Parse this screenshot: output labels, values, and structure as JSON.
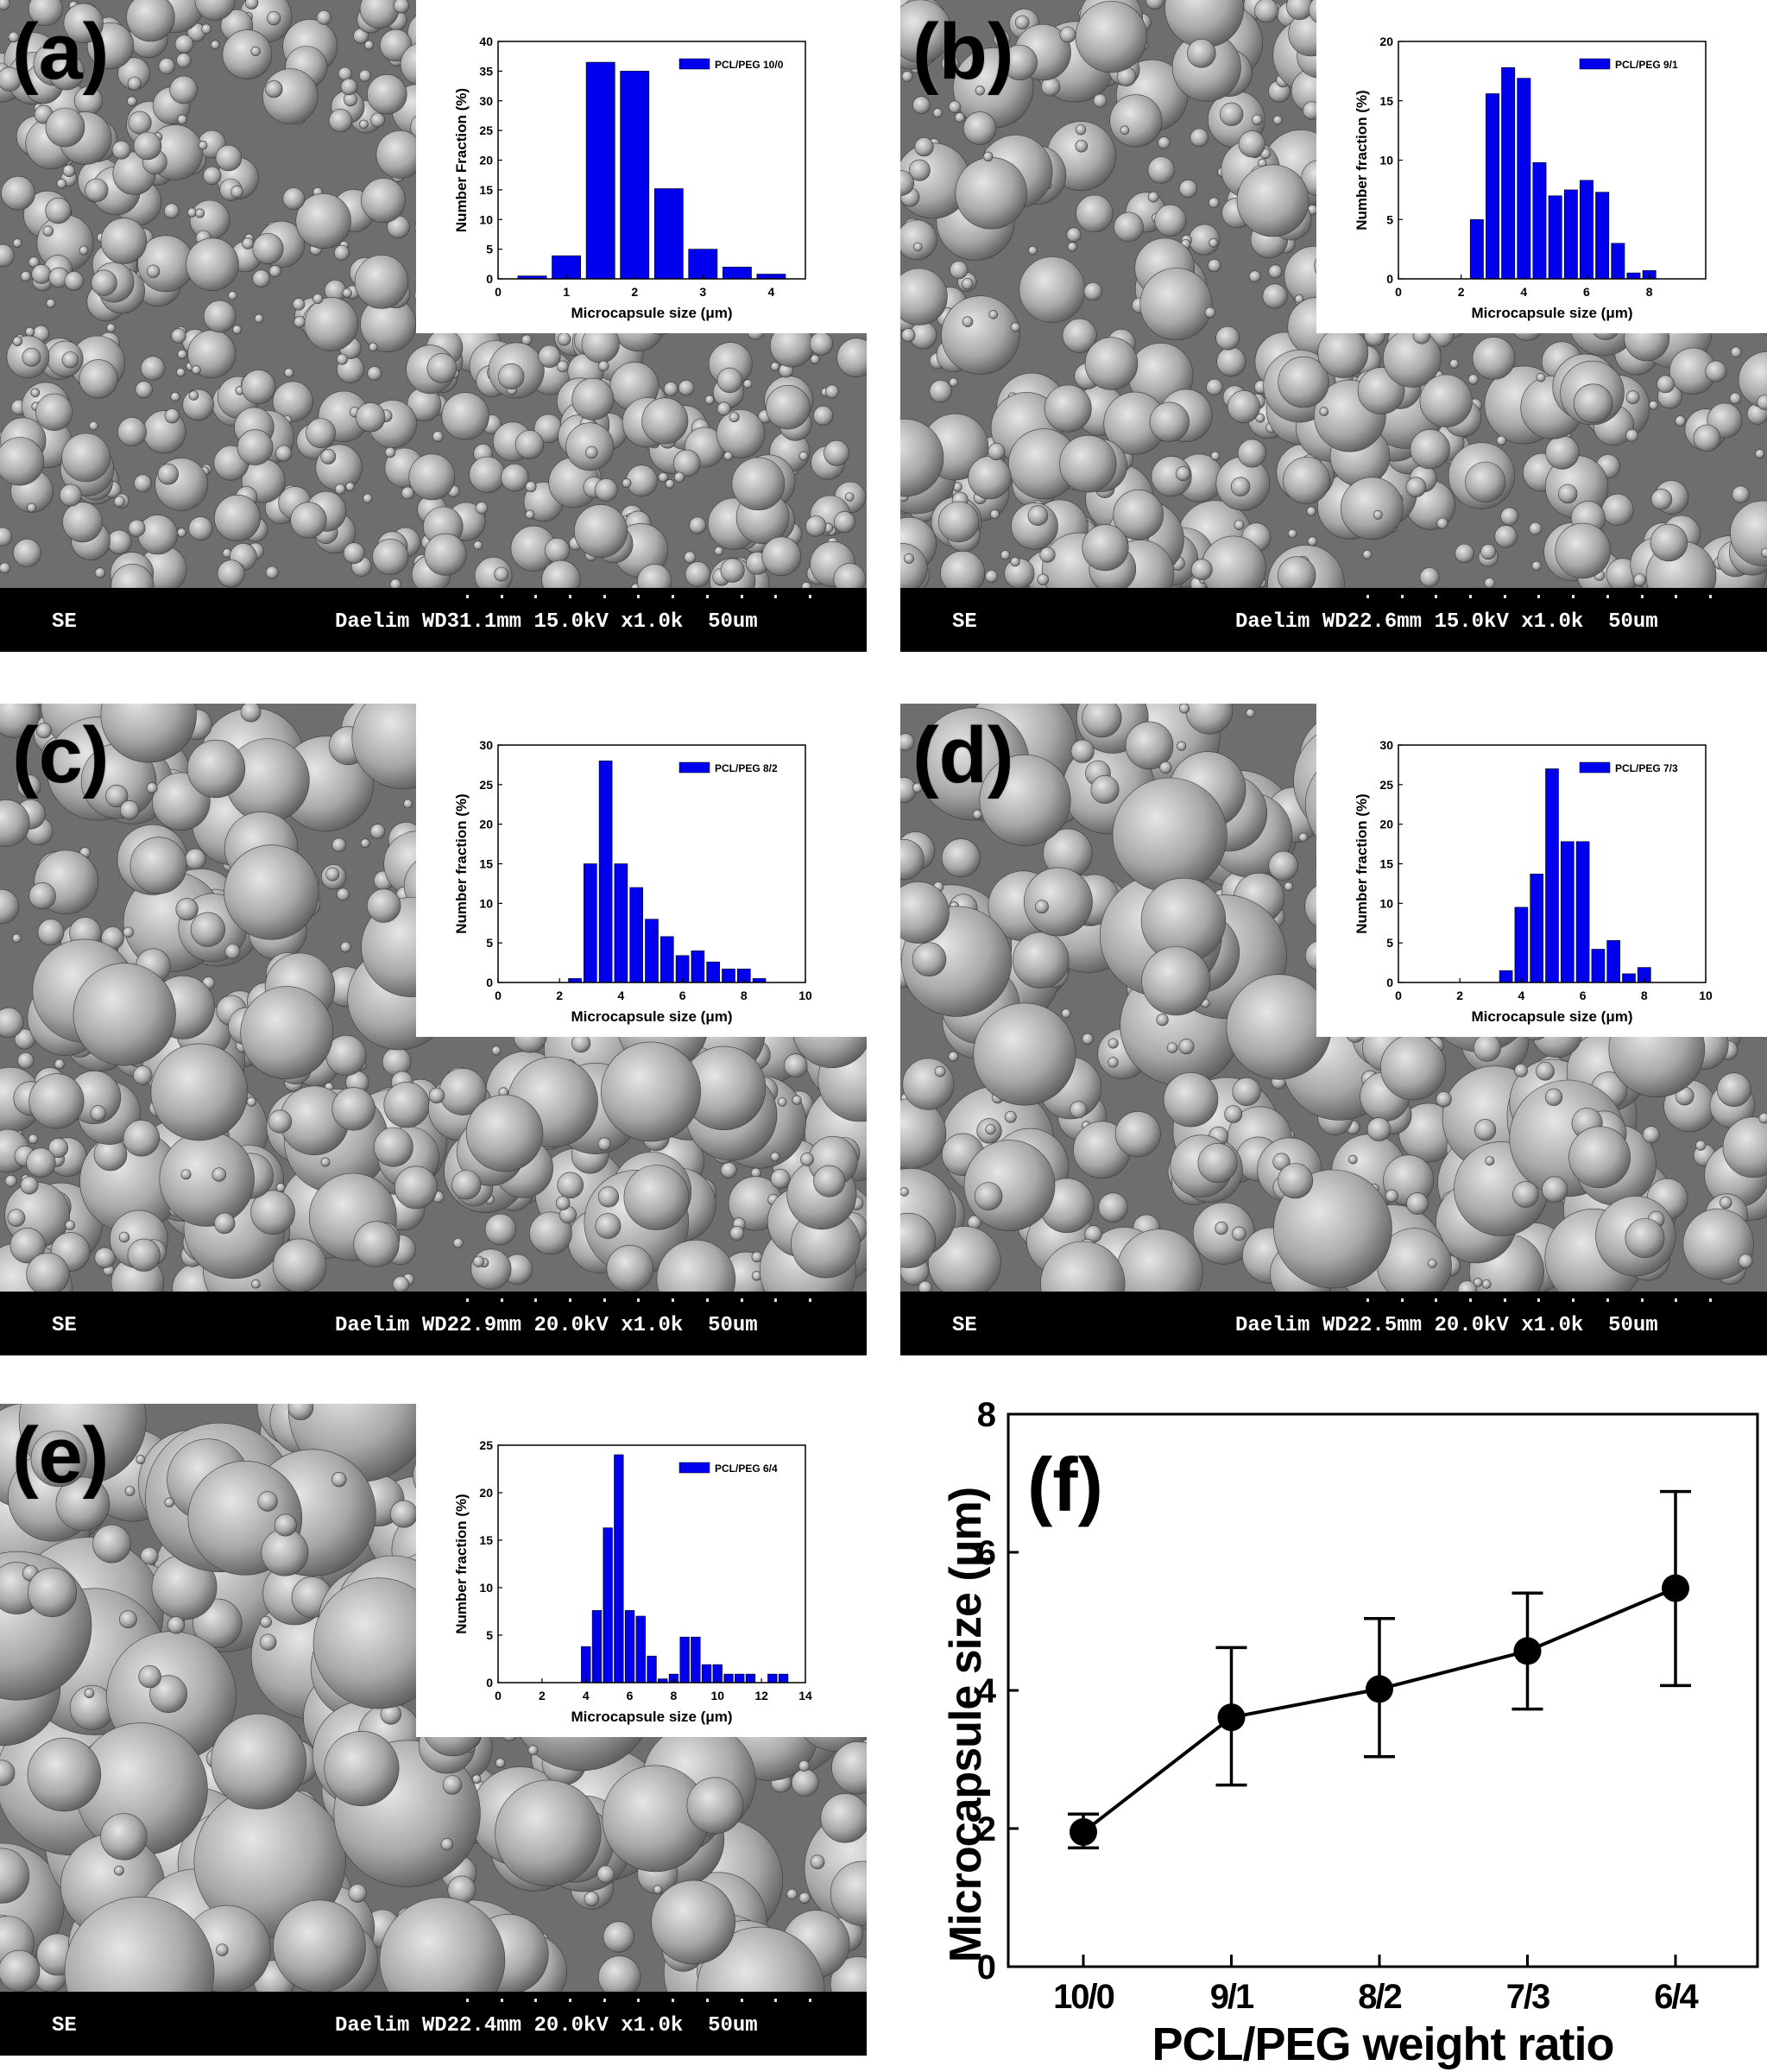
{
  "panels": [
    {
      "label": "(a)",
      "info_left": "SE",
      "info_right": "Daelim WD31.1mm 15.0kV x1.0k  50um"
    },
    {
      "label": "(b)",
      "info_left": "SE",
      "info_right": "Daelim WD22.6mm 15.0kV x1.0k  50um"
    },
    {
      "label": "(c)",
      "info_left": "SE",
      "info_right": "Daelim WD22.9mm 20.0kV x1.0k  50um"
    },
    {
      "label": "(d)",
      "info_left": "SE",
      "info_right": "Daelim WD22.5mm 20.0kV x1.0k  50um"
    },
    {
      "label": "(e)",
      "info_left": "SE",
      "info_right": "Daelim WD22.4mm 20.0kV x1.0k  50um"
    }
  ],
  "colors": {
    "bar": "#0000ee",
    "axis": "#000000",
    "sem_bg": "#7a7a7a",
    "info_bar": "#000000"
  },
  "chart_data": [
    {
      "type": "bar",
      "panel": "(a)",
      "legend": "PCL/PEG 10/0",
      "xlabel": "Microcapsule size (μm)",
      "ylabel": "Number Fraction (%)",
      "xlim": [
        0,
        4.5
      ],
      "ylim": [
        0,
        40
      ],
      "bin_width": 0.5,
      "xticks": [
        0,
        1,
        2,
        3,
        4
      ],
      "yticks": [
        0,
        5,
        10,
        15,
        20,
        25,
        30,
        35,
        40
      ],
      "x": [
        0.5,
        1.0,
        1.5,
        2.0,
        2.5,
        3.0,
        3.5,
        4.0
      ],
      "values": [
        0.5,
        3.9,
        36.5,
        35.0,
        15.2,
        5.0,
        2.0,
        0.8
      ]
    },
    {
      "type": "bar",
      "panel": "(b)",
      "legend": "PCL/PEG 9/1",
      "xlabel": "Microcapsule size (μm)",
      "ylabel": "Number fraction (%)",
      "xlim": [
        0,
        9.8
      ],
      "ylim": [
        0,
        20
      ],
      "bin_width": 0.5,
      "xticks": [
        0,
        2,
        4,
        6,
        8
      ],
      "yticks": [
        0,
        5,
        10,
        15,
        20
      ],
      "x": [
        2.5,
        3.0,
        3.5,
        4.0,
        4.5,
        5.0,
        5.5,
        6.0,
        6.5,
        7.0,
        7.5,
        8.0
      ],
      "values": [
        5.0,
        15.6,
        17.8,
        16.9,
        9.8,
        7.0,
        7.5,
        8.3,
        7.3,
        3.0,
        0.5,
        0.7
      ]
    },
    {
      "type": "bar",
      "panel": "(c)",
      "legend": "PCL/PEG 8/2",
      "xlabel": "Microcapsule size (μm)",
      "ylabel": "Number fraction (%)",
      "xlim": [
        0,
        10
      ],
      "ylim": [
        0,
        30
      ],
      "bin_width": 0.5,
      "xticks": [
        0,
        2,
        4,
        6,
        8,
        10
      ],
      "yticks": [
        0,
        5,
        10,
        15,
        20,
        25,
        30
      ],
      "x": [
        2.5,
        3.0,
        3.5,
        4.0,
        4.5,
        5.0,
        5.5,
        6.0,
        6.5,
        7.0,
        7.5,
        8.0,
        8.5
      ],
      "values": [
        0.5,
        15.0,
        28.0,
        15.0,
        12.0,
        8.0,
        5.8,
        3.4,
        4.0,
        2.6,
        1.7,
        1.7,
        0.5
      ]
    },
    {
      "type": "bar",
      "panel": "(d)",
      "legend": "PCL/PEG 7/3",
      "xlabel": "Microcapsule size (μm)",
      "ylabel": "Number fraction (%)",
      "xlim": [
        0,
        10
      ],
      "ylim": [
        0,
        30
      ],
      "bin_width": 0.5,
      "xticks": [
        0,
        2,
        4,
        6,
        8,
        10
      ],
      "yticks": [
        0,
        5,
        10,
        15,
        20,
        25,
        30
      ],
      "x": [
        3.5,
        4.0,
        4.5,
        5.0,
        5.5,
        6.0,
        6.5,
        7.0,
        7.5,
        8.0
      ],
      "values": [
        1.5,
        9.5,
        13.7,
        27.0,
        17.8,
        17.8,
        4.2,
        5.3,
        1.1,
        1.9
      ]
    },
    {
      "type": "bar",
      "panel": "(e)",
      "legend": "PCL/PEG 6/4",
      "xlabel": "Microcapsule size (μm)",
      "ylabel": "Number fraction (%)",
      "xlim": [
        0,
        14
      ],
      "ylim": [
        0,
        25
      ],
      "bin_width": 0.5,
      "xticks": [
        0,
        2,
        4,
        6,
        8,
        10,
        12,
        14
      ],
      "yticks": [
        0,
        5,
        10,
        15,
        20,
        25
      ],
      "x": [
        4.0,
        4.5,
        5.0,
        5.5,
        6.0,
        6.5,
        7.0,
        7.5,
        8.0,
        8.5,
        9.0,
        9.5,
        10.0,
        10.5,
        11.0,
        11.5,
        12.5,
        13.0
      ],
      "values": [
        3.8,
        7.6,
        16.3,
        24.0,
        7.6,
        7.0,
        2.8,
        0.4,
        0.9,
        4.8,
        4.8,
        1.9,
        1.9,
        0.9,
        0.9,
        0.9,
        0.9,
        0.9
      ]
    },
    {
      "type": "line",
      "panel": "(f)",
      "title": "(f)",
      "xlabel": "PCL/PEG weight ratio",
      "ylabel": "Microcapsule size (μm)",
      "categories": [
        "10/0",
        "9/1",
        "8/2",
        "7/3",
        "6/4"
      ],
      "ylim": [
        0,
        8
      ],
      "yticks": [
        0,
        2,
        4,
        6,
        8
      ],
      "values": [
        1.95,
        3.61,
        4.02,
        4.57,
        5.48
      ],
      "error_upper": [
        2.21,
        4.62,
        5.04,
        5.41,
        6.88
      ],
      "error_lower": [
        1.72,
        2.63,
        3.04,
        3.73,
        4.07
      ]
    }
  ]
}
